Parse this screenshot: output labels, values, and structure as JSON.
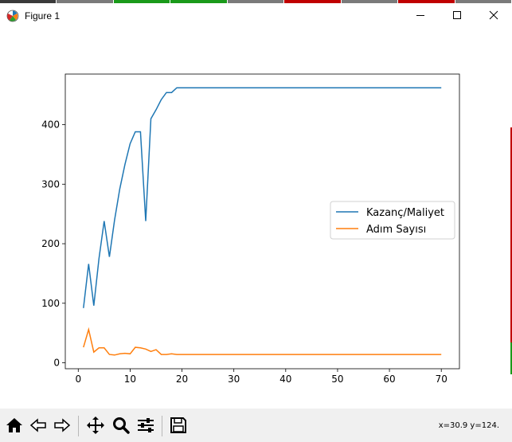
{
  "window": {
    "title": "Figure 1",
    "strip_colors": [
      "#3a3a3a",
      "#7a7a7a",
      "#1a9a1a",
      "#1a9a1a",
      "#7a7a7a",
      "#c00000",
      "#7a7a7a",
      "#c00000",
      "#7a7a7a"
    ]
  },
  "toolbar": {
    "buttons": [
      {
        "name": "home-button",
        "icon": "home-icon"
      },
      {
        "name": "back-button",
        "icon": "arrow-left-icon"
      },
      {
        "name": "forward-button",
        "icon": "arrow-right-icon"
      },
      {
        "name": "pan-button",
        "icon": "move-icon"
      },
      {
        "name": "zoom-button",
        "icon": "magnifier-icon"
      },
      {
        "name": "configure-subplots-button",
        "icon": "sliders-icon"
      },
      {
        "name": "save-button",
        "icon": "floppy-disk-icon"
      }
    ],
    "coords": "x=30.9 y=124."
  },
  "chart_data": {
    "type": "line",
    "title": "",
    "xlabel": "",
    "ylabel": "",
    "xlim": [
      -2.5,
      73.5
    ],
    "ylim": [
      -10,
      485
    ],
    "xticks": [
      0,
      10,
      20,
      30,
      40,
      50,
      60,
      70
    ],
    "yticks": [
      0,
      100,
      200,
      300,
      400
    ],
    "grid": false,
    "legend_position": "center-right",
    "series": [
      {
        "name": "Kazanç/Maliyet",
        "color": "#1f77b4",
        "x": [
          1,
          2,
          3,
          4,
          5,
          6,
          7,
          8,
          9,
          10,
          11,
          12,
          13,
          14,
          15,
          16,
          17,
          18,
          19,
          20,
          70
        ],
        "y": [
          92,
          166,
          96,
          175,
          238,
          178,
          240,
          292,
          333,
          368,
          388,
          388,
          238,
          410,
          425,
          442,
          454,
          454,
          462,
          462,
          462
        ]
      },
      {
        "name": "Adım Sayısı",
        "color": "#ff7f0e",
        "x": [
          1,
          2,
          3,
          4,
          5,
          6,
          7,
          8,
          9,
          10,
          11,
          12,
          13,
          14,
          15,
          16,
          17,
          18,
          19,
          20,
          70
        ],
        "y": [
          26,
          56,
          18,
          25,
          25,
          14,
          13,
          15,
          16,
          15,
          26,
          25,
          23,
          19,
          22,
          14,
          14,
          15,
          14,
          14,
          14
        ]
      }
    ]
  }
}
